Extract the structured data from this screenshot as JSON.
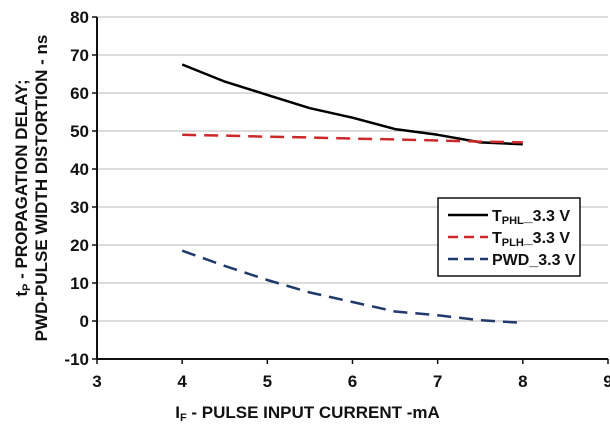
{
  "chart_data": {
    "type": "line",
    "xlabel": {
      "main": "I",
      "sub": "F",
      "rest": " - PULSE INPUT CURRENT -mA"
    },
    "ylabel": {
      "line1_main": "t",
      "line1_sub": "P",
      "line1_rest": " - PROPAGATION DELAY;",
      "line2": "PWD-PULSE WIDTH DISTORTION - ns"
    },
    "xlim": [
      3,
      9
    ],
    "ylim": [
      -10,
      80
    ],
    "x_ticks": [
      3,
      4,
      5,
      6,
      7,
      8,
      9
    ],
    "y_ticks": [
      -10,
      0,
      10,
      20,
      30,
      40,
      50,
      60,
      70,
      80
    ],
    "grid": "horizontal",
    "legend_position": "right-middle",
    "series": [
      {
        "name": {
          "main": "T",
          "sub": "PHL",
          "rest": "_3.3 V"
        },
        "color": "#000000",
        "style": "solid",
        "x": [
          4,
          4.5,
          5,
          5.5,
          6,
          6.5,
          7,
          7.5,
          8
        ],
        "y": [
          67.5,
          63,
          59.5,
          56,
          53.5,
          50.5,
          49,
          47,
          46.5
        ]
      },
      {
        "name": {
          "main": "T",
          "sub": "PLH",
          "rest": "_3.3 V"
        },
        "color": "#cc2a2a",
        "style": "dashed",
        "x": [
          4,
          4.5,
          5,
          5.5,
          6,
          6.5,
          7,
          7.5,
          8
        ],
        "y": [
          49,
          48.8,
          48.5,
          48.3,
          48,
          47.8,
          47.5,
          47.2,
          47
        ]
      },
      {
        "name": {
          "main": "PWD",
          "sub": "",
          "rest": "_3.3 V"
        },
        "color": "#1f3a6b",
        "style": "dashed",
        "x": [
          4,
          4.5,
          5,
          5.5,
          6,
          6.5,
          7,
          7.5,
          8
        ],
        "y": [
          18.5,
          14.5,
          10.8,
          7.5,
          5,
          2.5,
          1.5,
          0.2,
          -0.5
        ]
      }
    ]
  }
}
